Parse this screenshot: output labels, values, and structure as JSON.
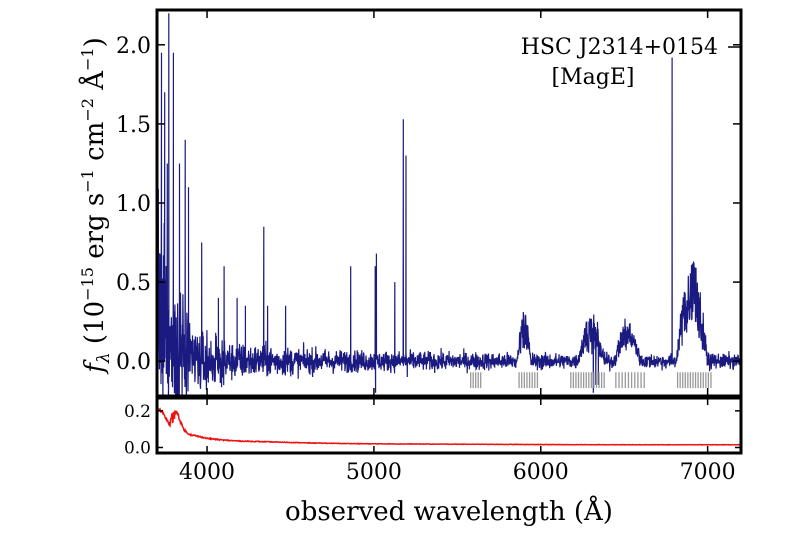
{
  "chart_data": [
    {
      "type": "line",
      "panel": "main",
      "title": "",
      "xlabel": "observed wavelength (Å)",
      "ylabel_symbol": "f",
      "ylabel_sub": "λ",
      "ylabel_rest": " (10",
      "ylabel_exp1": "−15",
      "ylabel_mid1": " erg s",
      "ylabel_exp2": "−1",
      "ylabel_mid2": " cm",
      "ylabel_exp3": "−2",
      "ylabel_mid3": " Å",
      "ylabel_exp4": "−1",
      "ylabel_close": ")",
      "annotations": {
        "object": "HSC J2314+0154",
        "instrument": "[MagE]"
      },
      "xlim": [
        3700,
        7200
      ],
      "ylim": [
        -0.22,
        2.22
      ],
      "yticks": [
        0.0,
        0.5,
        1.0,
        1.5,
        2.0
      ],
      "ytick_labels": [
        "0.0",
        "0.5",
        "1.0",
        "1.5",
        "2.0"
      ],
      "line_color": "#1a1a80",
      "emission_lines": [
        {
          "x": 3727,
          "y": 1.95
        },
        {
          "x": 3746,
          "y": 1.7
        },
        {
          "x": 3762,
          "y": 1.25
        },
        {
          "x": 3771,
          "y": 2.2
        },
        {
          "x": 3798,
          "y": 1.95
        },
        {
          "x": 3835,
          "y": 1.25
        },
        {
          "x": 3869,
          "y": 1.4
        },
        {
          "x": 3889,
          "y": 1.1
        },
        {
          "x": 3968,
          "y": 0.75
        },
        {
          "x": 4068,
          "y": 0.4
        },
        {
          "x": 4102,
          "y": 0.6
        },
        {
          "x": 4180,
          "y": 0.4
        },
        {
          "x": 4230,
          "y": 0.35
        },
        {
          "x": 4340,
          "y": 0.85
        },
        {
          "x": 4363,
          "y": 0.35
        },
        {
          "x": 4471,
          "y": 0.35
        },
        {
          "x": 4861,
          "y": 0.6
        },
        {
          "x": 5008,
          "y": 0.6
        },
        {
          "x": 5015,
          "y": 0.68
        },
        {
          "x": 5125,
          "y": 0.5
        },
        {
          "x": 5176,
          "y": 1.53
        },
        {
          "x": 5192,
          "y": 1.3
        },
        {
          "x": 6787,
          "y": 1.92
        }
      ],
      "absorption_dips": [
        {
          "x": 5010,
          "y": -0.2
        },
        {
          "x": 6315,
          "y": -0.2
        },
        {
          "x": 6330,
          "y": -0.15
        },
        {
          "x": 6345,
          "y": -0.15
        },
        {
          "x": 5200,
          "y": -0.1
        }
      ],
      "emission_bands": [
        {
          "x_start": 5860,
          "x_end": 5940,
          "peak": 0.3
        },
        {
          "x_start": 6220,
          "x_end": 6380,
          "peak": 0.25
        },
        {
          "x_start": 6440,
          "x_end": 6600,
          "peak": 0.22
        },
        {
          "x_start": 6810,
          "x_end": 7000,
          "peak": 0.56
        }
      ],
      "sky_line_groups": [
        {
          "x_start": 5580,
          "x_end": 5640,
          "count": 5
        },
        {
          "x_start": 5870,
          "x_end": 5980,
          "count": 8
        },
        {
          "x_start": 6180,
          "x_end": 6380,
          "count": 14
        },
        {
          "x_start": 6450,
          "x_end": 6620,
          "count": 10
        },
        {
          "x_start": 6820,
          "x_end": 7020,
          "count": 14
        }
      ]
    },
    {
      "type": "line",
      "panel": "error",
      "title": "",
      "xlabel": "",
      "ylabel": "",
      "xlim": [
        3700,
        7200
      ],
      "ylim": [
        -0.03,
        0.27
      ],
      "yticks": [
        0.0,
        0.2
      ],
      "ytick_labels": [
        "0.0",
        "0.2"
      ],
      "xticks": [
        4000,
        5000,
        6000,
        7000
      ],
      "xtick_labels": [
        "4000",
        "5000",
        "6000",
        "7000"
      ],
      "line_color": "#ee1111",
      "x": [
        3700,
        3720,
        3740,
        3760,
        3780,
        3800,
        3820,
        3840,
        3860,
        3880,
        3900,
        3950,
        4000,
        4100,
        4200,
        4400,
        4600,
        4800,
        5000,
        5500,
        6000,
        6500,
        7000,
        7200
      ],
      "y": [
        0.21,
        0.2,
        0.18,
        0.15,
        0.12,
        0.14,
        0.2,
        0.14,
        0.1,
        0.08,
        0.07,
        0.06,
        0.05,
        0.04,
        0.035,
        0.03,
        0.025,
        0.022,
        0.02,
        0.018,
        0.016,
        0.015,
        0.015,
        0.015
      ]
    }
  ]
}
